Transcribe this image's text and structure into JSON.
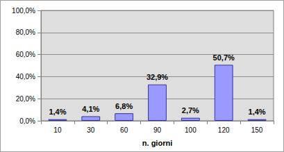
{
  "chart_data": {
    "type": "bar",
    "x_label": "n. giorni",
    "categories": [
      "10",
      "30",
      "60",
      "90",
      "100",
      "120",
      "150"
    ],
    "values": [
      1.4,
      4.1,
      6.8,
      32.9,
      2.7,
      50.7,
      1.4
    ],
    "value_labels": [
      "1,4%",
      "4,1%",
      "6,8%",
      "32,9%",
      "2,7%",
      "50,7%",
      "1,4%"
    ],
    "color": "#9999ff",
    "ylim": [
      0,
      100
    ],
    "yticks": [
      {
        "value": 0,
        "label": "0,0%"
      },
      {
        "value": 20,
        "label": "20,0%"
      },
      {
        "value": 40,
        "label": "40,0%"
      },
      {
        "value": 60,
        "label": "60,0%"
      },
      {
        "value": 80,
        "label": "80,0%"
      },
      {
        "value": 100,
        "label": "100,0%"
      }
    ],
    "grid": true,
    "data_labels": true
  }
}
